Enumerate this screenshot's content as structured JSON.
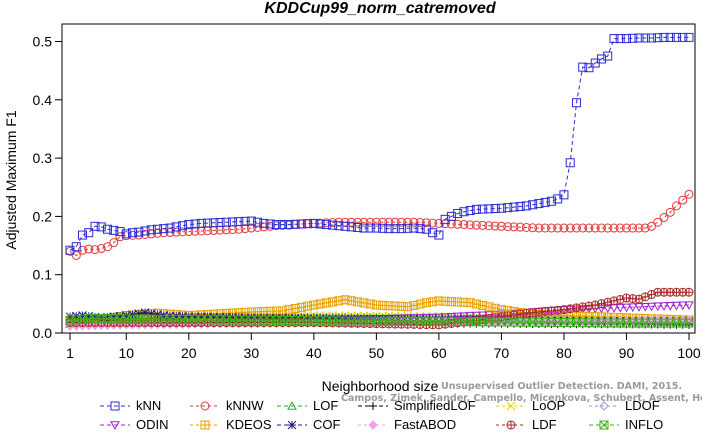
{
  "chart_data": {
    "type": "line",
    "title": "KDDCup99_norm_catremoved",
    "xlabel": "Neighborhood size",
    "ylabel": "Adjusted Maximum F1",
    "xlim": [
      1,
      100
    ],
    "ylim": [
      0,
      0.53
    ],
    "x_ticks": [
      1,
      10,
      20,
      30,
      40,
      50,
      60,
      70,
      80,
      90,
      100
    ],
    "x_tick_labels": [
      "1",
      "10",
      "20",
      "30",
      "40",
      "50",
      "60",
      "70",
      "80",
      "90",
      "100"
    ],
    "y_ticks": [
      0.0,
      0.1,
      0.2,
      0.3,
      0.4,
      0.5
    ],
    "y_tick_labels": [
      "0.0",
      "0.1",
      "0.2",
      "0.3",
      "0.4",
      "0.5"
    ],
    "grid": false,
    "legend_position": "bottom",
    "series": [
      {
        "name": "kNN",
        "color": "#2b2bd6",
        "marker": "square",
        "dash": "4,3",
        "points": [
          [
            1,
            0.142
          ],
          [
            2,
            0.148
          ],
          [
            3,
            0.168
          ],
          [
            4,
            0.172
          ],
          [
            5,
            0.183
          ],
          [
            6,
            0.182
          ],
          [
            7,
            0.178
          ],
          [
            8,
            0.176
          ],
          [
            9,
            0.174
          ],
          [
            10,
            0.17
          ],
          [
            11,
            0.172
          ],
          [
            12,
            0.173
          ],
          [
            13,
            0.175
          ],
          [
            14,
            0.177
          ],
          [
            15,
            0.178
          ],
          [
            16,
            0.179
          ],
          [
            17,
            0.18
          ],
          [
            18,
            0.182
          ],
          [
            19,
            0.184
          ],
          [
            20,
            0.186
          ],
          [
            22,
            0.188
          ],
          [
            24,
            0.189
          ],
          [
            26,
            0.19
          ],
          [
            28,
            0.191
          ],
          [
            30,
            0.192
          ],
          [
            32,
            0.188
          ],
          [
            34,
            0.186
          ],
          [
            36,
            0.186
          ],
          [
            38,
            0.187
          ],
          [
            40,
            0.188
          ],
          [
            42,
            0.186
          ],
          [
            44,
            0.184
          ],
          [
            46,
            0.182
          ],
          [
            48,
            0.18
          ],
          [
            50,
            0.18
          ],
          [
            52,
            0.179
          ],
          [
            54,
            0.179
          ],
          [
            56,
            0.18
          ],
          [
            58,
            0.178
          ],
          [
            59,
            0.172
          ],
          [
            60,
            0.168
          ],
          [
            61,
            0.195
          ],
          [
            62,
            0.2
          ],
          [
            63,
            0.205
          ],
          [
            64,
            0.208
          ],
          [
            65,
            0.21
          ],
          [
            66,
            0.212
          ],
          [
            68,
            0.213
          ],
          [
            70,
            0.214
          ],
          [
            72,
            0.216
          ],
          [
            74,
            0.218
          ],
          [
            76,
            0.222
          ],
          [
            78,
            0.226
          ],
          [
            79,
            0.23
          ],
          [
            80,
            0.237
          ],
          [
            81,
            0.292
          ],
          [
            82,
            0.395
          ],
          [
            83,
            0.456
          ],
          [
            84,
            0.455
          ],
          [
            85,
            0.463
          ],
          [
            86,
            0.47
          ],
          [
            87,
            0.475
          ],
          [
            88,
            0.505
          ],
          [
            90,
            0.505
          ],
          [
            92,
            0.506
          ],
          [
            94,
            0.506
          ],
          [
            96,
            0.507
          ],
          [
            98,
            0.507
          ],
          [
            100,
            0.507
          ]
        ]
      },
      {
        "name": "kNNW",
        "color": "#e23a3a",
        "marker": "circle",
        "dash": "3,3",
        "points": [
          [
            1,
            0.14
          ],
          [
            2,
            0.133
          ],
          [
            3,
            0.142
          ],
          [
            4,
            0.144
          ],
          [
            5,
            0.143
          ],
          [
            6,
            0.145
          ],
          [
            7,
            0.148
          ],
          [
            8,
            0.155
          ],
          [
            9,
            0.165
          ],
          [
            10,
            0.167
          ],
          [
            12,
            0.168
          ],
          [
            14,
            0.17
          ],
          [
            16,
            0.172
          ],
          [
            18,
            0.173
          ],
          [
            20,
            0.174
          ],
          [
            22,
            0.175
          ],
          [
            24,
            0.176
          ],
          [
            26,
            0.177
          ],
          [
            28,
            0.178
          ],
          [
            30,
            0.18
          ],
          [
            32,
            0.182
          ],
          [
            34,
            0.184
          ],
          [
            36,
            0.185
          ],
          [
            38,
            0.187
          ],
          [
            40,
            0.188
          ],
          [
            42,
            0.189
          ],
          [
            44,
            0.19
          ],
          [
            46,
            0.19
          ],
          [
            48,
            0.19
          ],
          [
            50,
            0.19
          ],
          [
            52,
            0.19
          ],
          [
            54,
            0.19
          ],
          [
            56,
            0.19
          ],
          [
            58,
            0.189
          ],
          [
            60,
            0.188
          ],
          [
            62,
            0.187
          ],
          [
            64,
            0.186
          ],
          [
            66,
            0.185
          ],
          [
            68,
            0.184
          ],
          [
            70,
            0.183
          ],
          [
            72,
            0.182
          ],
          [
            74,
            0.181
          ],
          [
            76,
            0.18
          ],
          [
            78,
            0.18
          ],
          [
            80,
            0.18
          ],
          [
            82,
            0.18
          ],
          [
            84,
            0.18
          ],
          [
            86,
            0.18
          ],
          [
            88,
            0.18
          ],
          [
            90,
            0.18
          ],
          [
            92,
            0.18
          ],
          [
            93,
            0.18
          ],
          [
            94,
            0.183
          ],
          [
            95,
            0.19
          ],
          [
            96,
            0.198
          ],
          [
            97,
            0.207
          ],
          [
            98,
            0.218
          ],
          [
            99,
            0.228
          ],
          [
            100,
            0.238
          ]
        ]
      },
      {
        "name": "LOF",
        "color": "#22b422",
        "marker": "triangle-up",
        "dash": "4,3",
        "points": [
          [
            1,
            0.015
          ],
          [
            5,
            0.018
          ],
          [
            10,
            0.022
          ],
          [
            20,
            0.026
          ],
          [
            30,
            0.027
          ],
          [
            40,
            0.027
          ],
          [
            50,
            0.026
          ],
          [
            60,
            0.025
          ],
          [
            70,
            0.024
          ],
          [
            80,
            0.023
          ],
          [
            90,
            0.022
          ],
          [
            100,
            0.021
          ]
        ]
      },
      {
        "name": "SimplifiedLOF",
        "color": "#000000",
        "marker": "plus",
        "dash": "4,3",
        "points": [
          [
            1,
            0.02
          ],
          [
            5,
            0.022
          ],
          [
            10,
            0.02
          ],
          [
            20,
            0.018
          ],
          [
            30,
            0.018
          ],
          [
            40,
            0.018
          ],
          [
            50,
            0.017
          ],
          [
            60,
            0.016
          ],
          [
            70,
            0.016
          ],
          [
            80,
            0.015
          ],
          [
            90,
            0.015
          ],
          [
            100,
            0.014
          ]
        ]
      },
      {
        "name": "LoOP",
        "color": "#e8d100",
        "marker": "x",
        "dash": "3,3",
        "points": [
          [
            1,
            0.02
          ],
          [
            5,
            0.024
          ],
          [
            10,
            0.028
          ],
          [
            20,
            0.03
          ],
          [
            30,
            0.031
          ],
          [
            40,
            0.03
          ],
          [
            50,
            0.029
          ],
          [
            60,
            0.028
          ],
          [
            70,
            0.027
          ],
          [
            80,
            0.026
          ],
          [
            90,
            0.025
          ],
          [
            100,
            0.024
          ]
        ]
      },
      {
        "name": "LDOF",
        "color": "#9a9ae6",
        "marker": "diamond",
        "dash": "3,3",
        "points": [
          [
            1,
            0.018
          ],
          [
            10,
            0.02
          ],
          [
            20,
            0.021
          ],
          [
            30,
            0.022
          ],
          [
            40,
            0.022
          ],
          [
            50,
            0.022
          ],
          [
            60,
            0.022
          ],
          [
            70,
            0.022
          ],
          [
            80,
            0.022
          ],
          [
            90,
            0.022
          ],
          [
            100,
            0.022
          ]
        ]
      },
      {
        "name": "ODIN",
        "color": "#a020d0",
        "marker": "triangle-down",
        "dash": "4,3",
        "points": [
          [
            1,
            0.012
          ],
          [
            10,
            0.015
          ],
          [
            20,
            0.018
          ],
          [
            30,
            0.02
          ],
          [
            40,
            0.022
          ],
          [
            50,
            0.024
          ],
          [
            60,
            0.027
          ],
          [
            70,
            0.032
          ],
          [
            80,
            0.04
          ],
          [
            90,
            0.044
          ],
          [
            100,
            0.048
          ]
        ]
      },
      {
        "name": "KDEOS",
        "color": "#e6a000",
        "marker": "square-cross",
        "dash": "3,3",
        "points": [
          [
            1,
            0.018
          ],
          [
            5,
            0.022
          ],
          [
            10,
            0.03
          ],
          [
            15,
            0.034
          ],
          [
            20,
            0.03
          ],
          [
            25,
            0.033
          ],
          [
            30,
            0.036
          ],
          [
            35,
            0.038
          ],
          [
            40,
            0.048
          ],
          [
            45,
            0.057
          ],
          [
            50,
            0.048
          ],
          [
            55,
            0.045
          ],
          [
            58,
            0.052
          ],
          [
            60,
            0.055
          ],
          [
            65,
            0.052
          ],
          [
            70,
            0.04
          ],
          [
            75,
            0.032
          ],
          [
            80,
            0.03
          ],
          [
            85,
            0.028
          ],
          [
            90,
            0.026
          ],
          [
            95,
            0.024
          ],
          [
            100,
            0.022
          ]
        ]
      },
      {
        "name": "COF",
        "color": "#1a1a80",
        "marker": "asterisk",
        "dash": "4,3",
        "points": [
          [
            1,
            0.028
          ],
          [
            3,
            0.03
          ],
          [
            6,
            0.026
          ],
          [
            10,
            0.03
          ],
          [
            13,
            0.035
          ],
          [
            16,
            0.03
          ],
          [
            20,
            0.028
          ],
          [
            30,
            0.026
          ],
          [
            40,
            0.025
          ],
          [
            50,
            0.024
          ],
          [
            60,
            0.023
          ],
          [
            70,
            0.022
          ],
          [
            80,
            0.021
          ],
          [
            90,
            0.02
          ],
          [
            100,
            0.02
          ]
        ]
      },
      {
        "name": "FastABOD",
        "color": "#f0a0f0",
        "marker": "diamond-filled",
        "dash": "3,3",
        "points": [
          [
            1,
            0.012
          ],
          [
            10,
            0.014
          ],
          [
            20,
            0.015
          ],
          [
            30,
            0.016
          ],
          [
            40,
            0.017
          ],
          [
            50,
            0.018
          ],
          [
            60,
            0.019
          ],
          [
            70,
            0.02
          ],
          [
            80,
            0.02
          ],
          [
            90,
            0.021
          ],
          [
            100,
            0.022
          ]
        ]
      },
      {
        "name": "LDF",
        "color": "#a82a2a",
        "marker": "circle-plus",
        "dash": "3,3",
        "points": [
          [
            1,
            0.018
          ],
          [
            10,
            0.018
          ],
          [
            20,
            0.018
          ],
          [
            30,
            0.018
          ],
          [
            40,
            0.018
          ],
          [
            50,
            0.016
          ],
          [
            55,
            0.015
          ],
          [
            60,
            0.014
          ],
          [
            65,
            0.02
          ],
          [
            70,
            0.028
          ],
          [
            75,
            0.035
          ],
          [
            80,
            0.04
          ],
          [
            85,
            0.048
          ],
          [
            88,
            0.055
          ],
          [
            90,
            0.06
          ],
          [
            92,
            0.058
          ],
          [
            95,
            0.07
          ],
          [
            100,
            0.07
          ]
        ]
      },
      {
        "name": "INFLO",
        "color": "#3ab01a",
        "marker": "square-x",
        "dash": "4,3",
        "points": [
          [
            1,
            0.022
          ],
          [
            5,
            0.025
          ],
          [
            10,
            0.024
          ],
          [
            20,
            0.023
          ],
          [
            30,
            0.022
          ],
          [
            40,
            0.021
          ],
          [
            50,
            0.02
          ],
          [
            60,
            0.02
          ],
          [
            70,
            0.019
          ],
          [
            80,
            0.018
          ],
          [
            90,
            0.017
          ],
          [
            100,
            0.017
          ]
        ]
      }
    ]
  },
  "watermark": {
    "line1": "Unsupervised Outlier Detection. DAMI, 2015.",
    "line2": "Campos, Zimek, Sander, Campello, Micenkova, Schubert, Assent, Houle"
  }
}
